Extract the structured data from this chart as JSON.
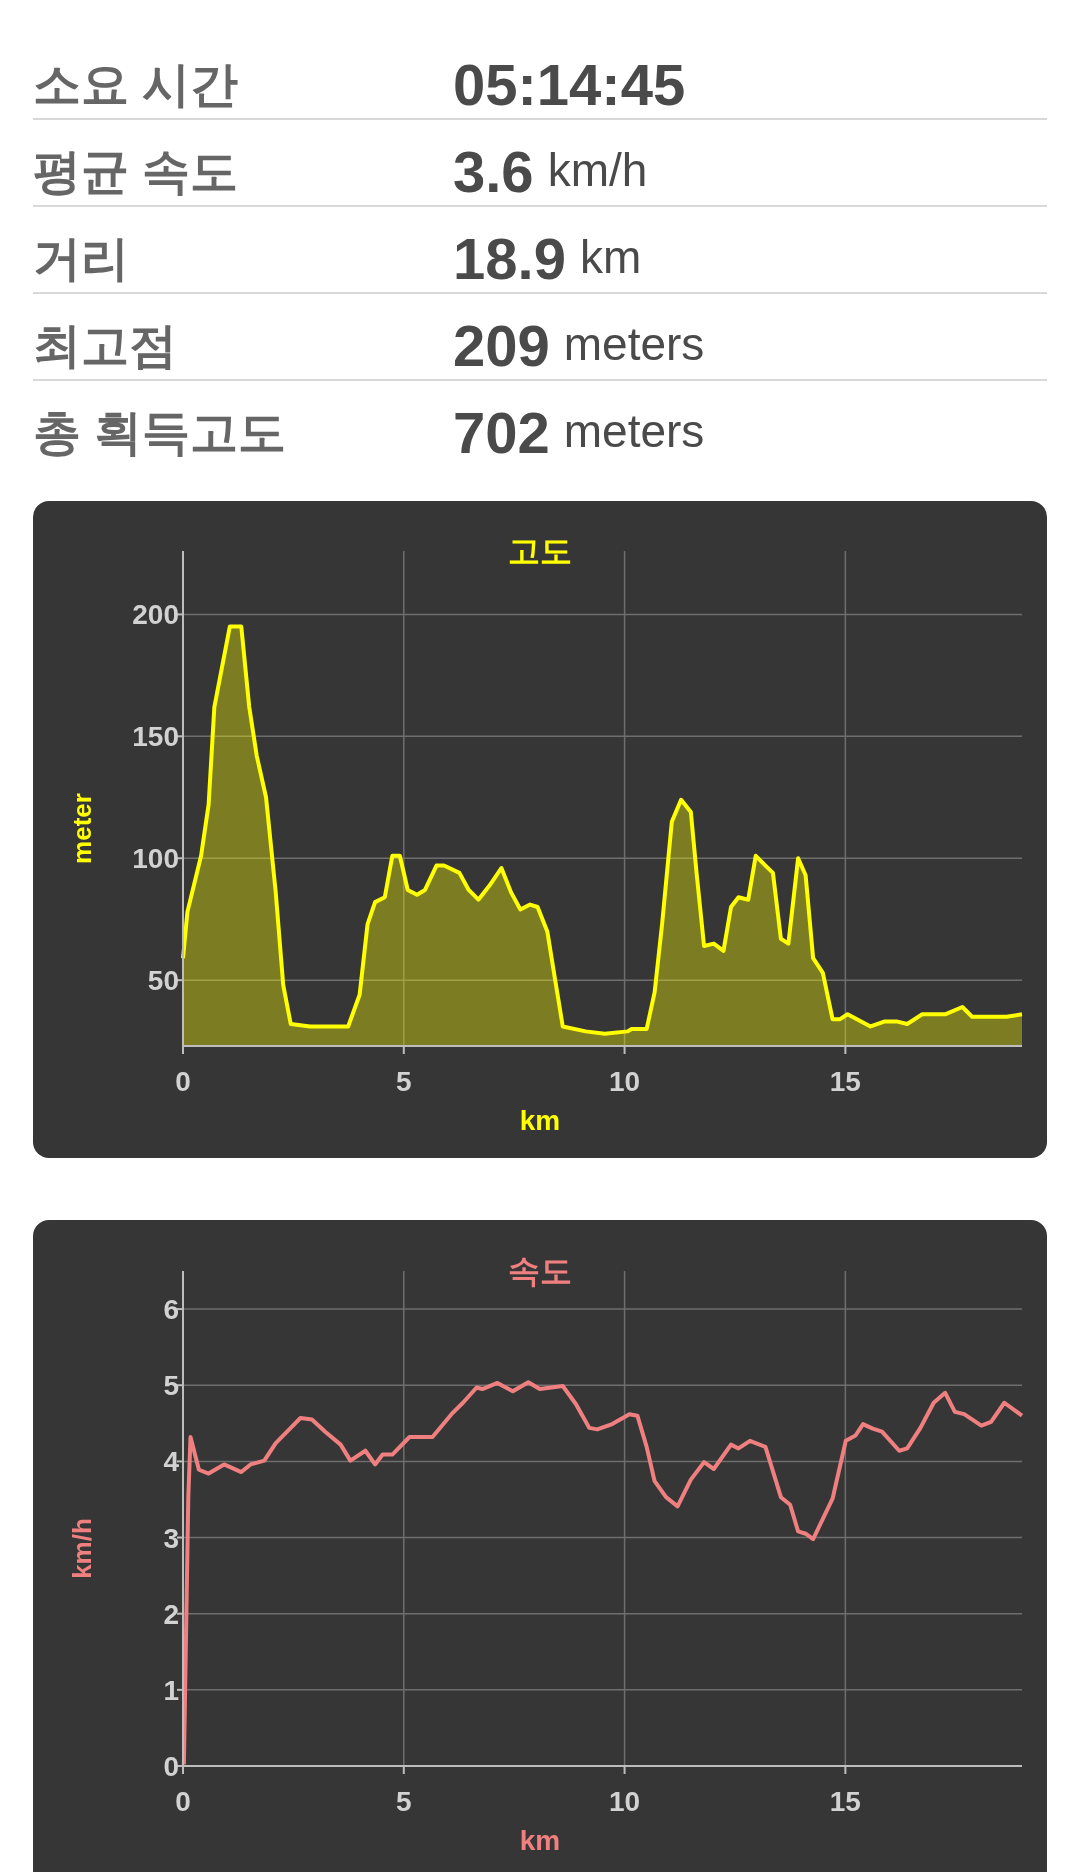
{
  "chart_data": [
    {
      "type": "other",
      "annotations": [
        "소요 시간",
        "05:14:45",
        "평균 속도",
        "3.6 km/h",
        "거리",
        "18.9 km",
        "최고점",
        "209 meters",
        "총 획득고도",
        "702 meters"
      ]
    },
    {
      "type": "area",
      "title": "고도",
      "xlabel": "km",
      "ylabel": "meter",
      "color": "#ffff00",
      "xlim": [
        0,
        19
      ],
      "ylim": [
        23,
        226
      ],
      "xticks": [
        0,
        5,
        10,
        15
      ],
      "yticks": [
        50,
        100,
        150,
        200
      ],
      "grid": true,
      "x": [
        0,
        0.1,
        0.41,
        0.58,
        0.71,
        1.06,
        1.32,
        1.5,
        1.67,
        1.88,
        2.1,
        2.27,
        2.44,
        2.88,
        3.14,
        3.4,
        3.74,
        4.0,
        4.18,
        4.35,
        4.57,
        4.74,
        4.91,
        5.09,
        5.3,
        5.48,
        5.74,
        5.91,
        6.26,
        6.47,
        6.69,
        6.95,
        7.21,
        7.43,
        7.64,
        7.86,
        8.03,
        8.25,
        8.42,
        8.6,
        9.12,
        9.55,
        10.07,
        10.16,
        10.5,
        10.68,
        10.85,
        11.07,
        11.28,
        11.5,
        11.63,
        11.8,
        12.02,
        12.24,
        12.41,
        12.58,
        12.8,
        12.97,
        13.19,
        13.36,
        13.54,
        13.71,
        13.93,
        14.1,
        14.27,
        14.49,
        14.71,
        14.88,
        15.05,
        15.57,
        15.88,
        16.18,
        16.4,
        16.74,
        17.26,
        17.65,
        17.87,
        18.65,
        19.0
      ],
      "values": [
        59,
        78,
        101,
        122,
        162,
        195,
        195,
        162,
        142,
        125,
        86,
        48,
        32,
        31,
        31,
        31,
        31,
        44,
        73,
        82,
        84,
        101,
        101,
        87,
        85,
        87,
        97,
        97,
        94,
        87,
        83,
        89,
        96,
        86,
        79,
        81,
        80,
        70,
        51,
        31,
        29,
        28,
        29,
        30,
        30,
        45,
        73,
        115,
        124,
        119,
        94,
        64,
        65,
        62,
        80,
        84,
        83,
        101,
        97,
        94,
        67,
        65,
        100,
        93,
        59,
        53,
        34,
        34,
        36,
        31,
        33,
        33,
        32,
        36,
        36,
        39,
        35,
        35,
        36
      ]
    },
    {
      "type": "line",
      "title": "속도",
      "xlabel": "km",
      "ylabel": "km/h",
      "color": "#f08080",
      "xlim": [
        0,
        19
      ],
      "ylim": [
        0,
        6.5
      ],
      "xticks": [
        0,
        5,
        10,
        15
      ],
      "yticks": [
        0,
        1,
        2,
        3,
        4,
        5,
        6
      ],
      "grid": true,
      "x": [
        0.02,
        0.12,
        0.17,
        0.36,
        0.58,
        0.93,
        1.32,
        1.53,
        1.84,
        2.1,
        2.44,
        2.66,
        2.92,
        3.22,
        3.57,
        3.79,
        4.13,
        4.35,
        4.52,
        4.74,
        5.13,
        5.65,
        6.08,
        6.34,
        6.65,
        6.78,
        7.12,
        7.47,
        7.82,
        8.08,
        8.6,
        8.9,
        9.2,
        9.38,
        9.72,
        10.11,
        10.29,
        10.5,
        10.68,
        10.94,
        11.2,
        11.5,
        11.8,
        12.02,
        12.41,
        12.58,
        12.84,
        13.19,
        13.54,
        13.75,
        13.93,
        14.1,
        14.27,
        14.71,
        15.01,
        15.23,
        15.4,
        15.62,
        15.83,
        16.22,
        16.4,
        16.7,
        17.0,
        17.26,
        17.48,
        17.69,
        18.08,
        18.3,
        18.6,
        19.0
      ],
      "values": [
        0.02,
        3.53,
        4.32,
        3.89,
        3.84,
        3.96,
        3.86,
        3.96,
        4.01,
        4.24,
        4.44,
        4.57,
        4.55,
        4.39,
        4.22,
        4.01,
        4.14,
        3.96,
        4.09,
        4.09,
        4.32,
        4.32,
        4.62,
        4.77,
        4.97,
        4.95,
        5.03,
        4.92,
        5.04,
        4.95,
        4.99,
        4.75,
        4.44,
        4.42,
        4.49,
        4.62,
        4.6,
        4.19,
        3.74,
        3.53,
        3.41,
        3.76,
        3.99,
        3.9,
        4.22,
        4.17,
        4.27,
        4.19,
        3.53,
        3.43,
        3.08,
        3.05,
        2.98,
        3.51,
        4.27,
        4.34,
        4.49,
        4.43,
        4.39,
        4.14,
        4.17,
        4.44,
        4.77,
        4.9,
        4.65,
        4.62,
        4.47,
        4.52,
        4.77,
        4.6
      ]
    }
  ]
}
